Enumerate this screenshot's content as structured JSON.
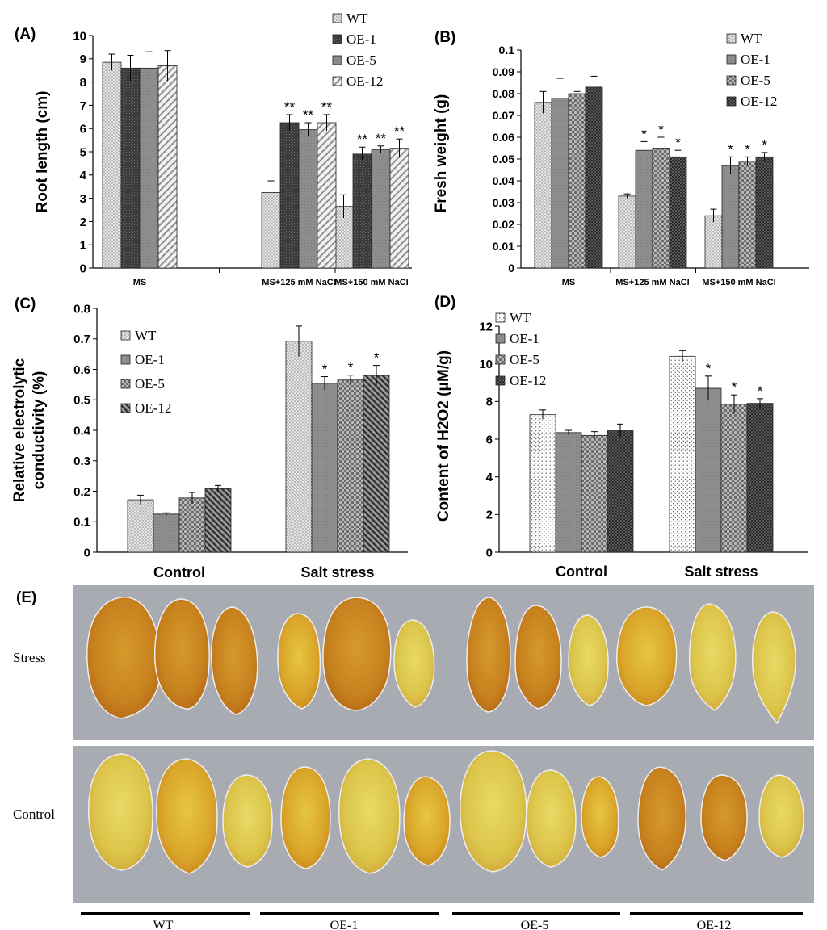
{
  "figure": {
    "panel_e": {
      "label": "(E)",
      "rows": [
        "Stress",
        "Control"
      ],
      "groups": [
        "WT",
        "OE-1",
        "OE-5",
        "OE-12"
      ]
    }
  },
  "chart_data": [
    {
      "type": "bar",
      "panel": "(A)",
      "ylabel": "Root length (cm)",
      "xlabel": "",
      "categories": [
        "MS",
        "MS+125 mM NaCl",
        "MS+150 mM NaCl"
      ],
      "ylim": [
        0,
        10
      ],
      "yticks": [
        0,
        1,
        2,
        3,
        4,
        5,
        6,
        7,
        8,
        9,
        10
      ],
      "legend": "top-right",
      "series": [
        {
          "name": "WT",
          "values": [
            8.85,
            3.25,
            2.65
          ],
          "errors": [
            0.35,
            0.5,
            0.5
          ],
          "marks": [
            "",
            "",
            ""
          ]
        },
        {
          "name": "OE-1",
          "values": [
            8.6,
            6.25,
            4.9
          ],
          "errors": [
            0.55,
            0.35,
            0.3
          ],
          "marks": [
            "",
            "**",
            "**"
          ]
        },
        {
          "name": "OE-5",
          "values": [
            8.6,
            5.95,
            5.1
          ],
          "errors": [
            0.7,
            0.3,
            0.15
          ],
          "marks": [
            "",
            "**",
            "**"
          ]
        },
        {
          "name": "OE-12",
          "values": [
            8.7,
            6.25,
            5.15
          ],
          "errors": [
            0.65,
            0.35,
            0.4
          ],
          "marks": [
            "",
            "**",
            "**"
          ]
        }
      ]
    },
    {
      "type": "bar",
      "panel": "(B)",
      "ylabel": "Fresh weight (g)",
      "xlabel": "",
      "categories": [
        "MS",
        "MS+125 mM NaCl",
        "MS+150 mM NaCl"
      ],
      "ylim": [
        0,
        0.1
      ],
      "yticks": [
        0,
        0.01,
        0.02,
        0.03,
        0.04,
        0.05,
        0.06,
        0.07,
        0.08,
        0.09,
        0.1
      ],
      "legend": "top-right",
      "series": [
        {
          "name": "WT",
          "values": [
            0.076,
            0.033,
            0.024
          ],
          "errors": [
            0.005,
            0.001,
            0.003
          ],
          "marks": [
            "",
            "",
            ""
          ]
        },
        {
          "name": "OE-1",
          "values": [
            0.078,
            0.054,
            0.047
          ],
          "errors": [
            0.009,
            0.004,
            0.004
          ],
          "marks": [
            "",
            "*",
            "*"
          ]
        },
        {
          "name": "OE-5",
          "values": [
            0.08,
            0.055,
            0.049
          ],
          "errors": [
            0.001,
            0.005,
            0.002
          ],
          "marks": [
            "",
            "*",
            "*"
          ]
        },
        {
          "name": "OE-12",
          "values": [
            0.083,
            0.051,
            0.051
          ],
          "errors": [
            0.005,
            0.003,
            0.002
          ],
          "marks": [
            "",
            "*",
            "*"
          ]
        }
      ]
    },
    {
      "type": "bar",
      "panel": "(C)",
      "ylabel": "Relative electrolytic conductivity (%)",
      "xlabel": "",
      "categories": [
        "Control",
        "Salt stress"
      ],
      "ylim": [
        0,
        0.8
      ],
      "yticks": [
        0,
        0.1,
        0.2,
        0.3,
        0.4,
        0.5,
        0.6,
        0.7,
        0.8
      ],
      "legend": "upper-left",
      "series": [
        {
          "name": "WT",
          "values": [
            0.172,
            0.692
          ],
          "errors": [
            0.015,
            0.05
          ],
          "marks": [
            "",
            ""
          ]
        },
        {
          "name": "OE-1",
          "values": [
            0.125,
            0.554
          ],
          "errors": [
            0.004,
            0.022
          ],
          "marks": [
            "",
            "*"
          ]
        },
        {
          "name": "OE-5",
          "values": [
            0.178,
            0.565
          ],
          "errors": [
            0.018,
            0.016
          ],
          "marks": [
            "",
            "*"
          ]
        },
        {
          "name": "OE-12",
          "values": [
            0.208,
            0.58
          ],
          "errors": [
            0.011,
            0.033
          ],
          "marks": [
            "",
            "*"
          ]
        }
      ]
    },
    {
      "type": "bar",
      "panel": "(D)",
      "ylabel": "Content of H2O2 (μM/g)",
      "xlabel": "",
      "categories": [
        "Control",
        "Salt stress"
      ],
      "ylim": [
        0,
        12
      ],
      "yticks": [
        0,
        2,
        4,
        6,
        8,
        10,
        12
      ],
      "legend": "top-left",
      "series": [
        {
          "name": "WT",
          "values": [
            7.3,
            10.4
          ],
          "errors": [
            0.25,
            0.3
          ],
          "marks": [
            "",
            ""
          ]
        },
        {
          "name": "OE-1",
          "values": [
            6.35,
            8.7
          ],
          "errors": [
            0.12,
            0.65
          ],
          "marks": [
            "",
            "*"
          ]
        },
        {
          "name": "OE-5",
          "values": [
            6.2,
            7.85
          ],
          "errors": [
            0.2,
            0.5
          ],
          "marks": [
            "",
            "*"
          ]
        },
        {
          "name": "OE-12",
          "values": [
            6.45,
            7.9
          ],
          "errors": [
            0.35,
            0.25
          ],
          "marks": [
            "",
            "*"
          ]
        }
      ]
    }
  ]
}
